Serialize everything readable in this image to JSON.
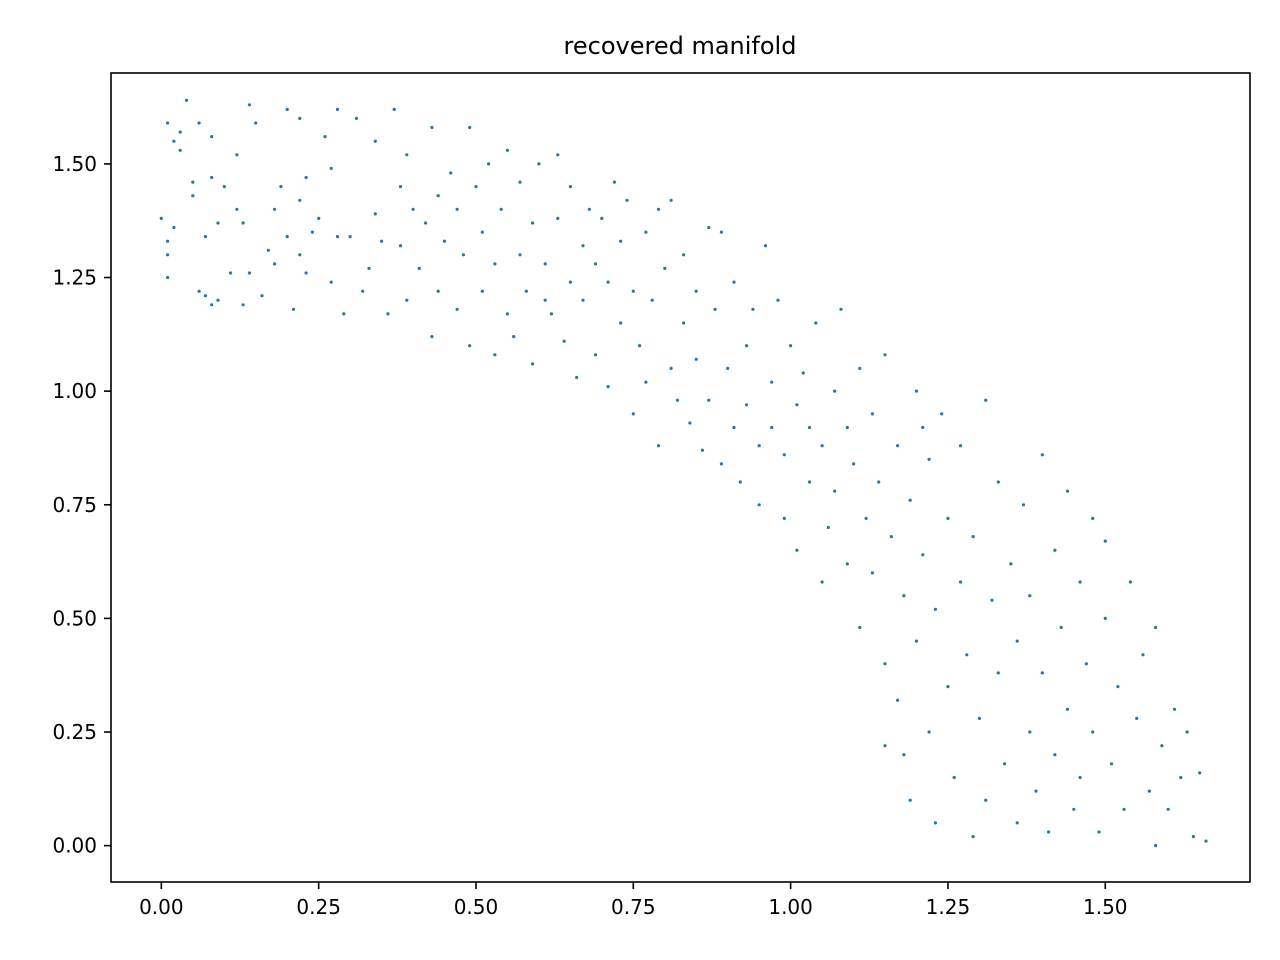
{
  "chart_data": {
    "type": "scatter",
    "title": "recovered manifold",
    "xlabel": "",
    "ylabel": "",
    "xlim": [
      -0.08,
      1.73
    ],
    "ylim": [
      -0.08,
      1.7
    ],
    "x_ticks": [
      {
        "value": 0.0,
        "label": "0.00"
      },
      {
        "value": 0.25,
        "label": "0.25"
      },
      {
        "value": 0.5,
        "label": "0.50"
      },
      {
        "value": 0.75,
        "label": "0.75"
      },
      {
        "value": 1.0,
        "label": "1.00"
      },
      {
        "value": 1.25,
        "label": "1.25"
      },
      {
        "value": 1.5,
        "label": "1.50"
      }
    ],
    "y_ticks": [
      {
        "value": 0.0,
        "label": "0.00"
      },
      {
        "value": 0.25,
        "label": "0.25"
      },
      {
        "value": 0.5,
        "label": "0.50"
      },
      {
        "value": 0.75,
        "label": "0.75"
      },
      {
        "value": 1.0,
        "label": "1.00"
      },
      {
        "value": 1.25,
        "label": "1.25"
      },
      {
        "value": 1.5,
        "label": "1.50"
      }
    ],
    "grid": false,
    "legend": "none",
    "marker_color": "#1f77b4",
    "series": [
      {
        "points": [
          [
            0.0,
            1.38
          ],
          [
            0.01,
            1.59
          ],
          [
            0.02,
            1.55
          ],
          [
            0.03,
            1.57
          ],
          [
            0.01,
            1.33
          ],
          [
            0.02,
            1.36
          ],
          [
            0.01,
            1.3
          ],
          [
            0.01,
            1.25
          ],
          [
            0.03,
            1.53
          ],
          [
            0.04,
            1.64
          ],
          [
            0.05,
            1.43
          ],
          [
            0.05,
            1.46
          ],
          [
            0.06,
            1.59
          ],
          [
            0.07,
            1.34
          ],
          [
            0.06,
            1.22
          ],
          [
            0.08,
            1.19
          ],
          [
            0.07,
            1.21
          ],
          [
            0.09,
            1.2
          ],
          [
            0.08,
            1.47
          ],
          [
            0.08,
            1.56
          ],
          [
            0.09,
            1.37
          ],
          [
            0.1,
            1.45
          ],
          [
            0.11,
            1.26
          ],
          [
            0.12,
            1.52
          ],
          [
            0.12,
            1.4
          ],
          [
            0.13,
            1.37
          ],
          [
            0.14,
            1.26
          ],
          [
            0.15,
            1.59
          ],
          [
            0.14,
            1.63
          ],
          [
            0.13,
            1.19
          ],
          [
            0.16,
            1.21
          ],
          [
            0.17,
            1.31
          ],
          [
            0.18,
            1.28
          ],
          [
            0.18,
            1.4
          ],
          [
            0.19,
            1.45
          ],
          [
            0.2,
            1.34
          ],
          [
            0.2,
            1.62
          ],
          [
            0.21,
            1.18
          ],
          [
            0.22,
            1.42
          ],
          [
            0.22,
            1.3
          ],
          [
            0.22,
            1.6
          ],
          [
            0.23,
            1.47
          ],
          [
            0.23,
            1.26
          ],
          [
            0.24,
            1.35
          ],
          [
            0.25,
            1.38
          ],
          [
            0.26,
            1.56
          ],
          [
            0.27,
            1.49
          ],
          [
            0.27,
            1.24
          ],
          [
            0.28,
            1.34
          ],
          [
            0.29,
            1.17
          ],
          [
            0.28,
            1.62
          ],
          [
            0.3,
            1.34
          ],
          [
            0.31,
            1.6
          ],
          [
            0.32,
            1.22
          ],
          [
            0.33,
            1.27
          ],
          [
            0.34,
            1.39
          ],
          [
            0.34,
            1.55
          ],
          [
            0.35,
            1.33
          ],
          [
            0.36,
            1.17
          ],
          [
            0.37,
            1.62
          ],
          [
            0.38,
            1.32
          ],
          [
            0.38,
            1.45
          ],
          [
            0.39,
            1.2
          ],
          [
            0.39,
            1.52
          ],
          [
            0.4,
            1.4
          ],
          [
            0.41,
            1.27
          ],
          [
            0.42,
            1.37
          ],
          [
            0.43,
            1.12
          ],
          [
            0.43,
            1.58
          ],
          [
            0.44,
            1.43
          ],
          [
            0.44,
            1.22
          ],
          [
            0.45,
            1.33
          ],
          [
            0.46,
            1.48
          ],
          [
            0.47,
            1.18
          ],
          [
            0.47,
            1.4
          ],
          [
            0.48,
            1.3
          ],
          [
            0.49,
            1.1
          ],
          [
            0.49,
            1.58
          ],
          [
            0.5,
            1.45
          ],
          [
            0.51,
            1.35
          ],
          [
            0.51,
            1.22
          ],
          [
            0.52,
            1.5
          ],
          [
            0.53,
            1.08
          ],
          [
            0.53,
            1.28
          ],
          [
            0.54,
            1.4
          ],
          [
            0.55,
            1.53
          ],
          [
            0.55,
            1.17
          ],
          [
            0.56,
            1.12
          ],
          [
            0.57,
            1.3
          ],
          [
            0.57,
            1.46
          ],
          [
            0.58,
            1.22
          ],
          [
            0.59,
            1.37
          ],
          [
            0.59,
            1.06
          ],
          [
            0.6,
            1.5
          ],
          [
            0.61,
            1.2
          ],
          [
            0.61,
            1.28
          ],
          [
            0.62,
            1.17
          ],
          [
            0.63,
            1.38
          ],
          [
            0.63,
            1.52
          ],
          [
            0.64,
            1.11
          ],
          [
            0.65,
            1.45
          ],
          [
            0.65,
            1.24
          ],
          [
            0.66,
            1.03
          ],
          [
            0.67,
            1.32
          ],
          [
            0.67,
            1.2
          ],
          [
            0.68,
            1.4
          ],
          [
            0.69,
            1.08
          ],
          [
            0.69,
            1.28
          ],
          [
            0.7,
            1.38
          ],
          [
            0.71,
            1.01
          ],
          [
            0.71,
            1.24
          ],
          [
            0.72,
            1.46
          ],
          [
            0.73,
            1.15
          ],
          [
            0.73,
            1.33
          ],
          [
            0.74,
            1.42
          ],
          [
            0.75,
            0.95
          ],
          [
            0.75,
            1.22
          ],
          [
            0.76,
            1.1
          ],
          [
            0.77,
            1.35
          ],
          [
            0.77,
            1.02
          ],
          [
            0.78,
            1.2
          ],
          [
            0.79,
            1.4
          ],
          [
            0.79,
            0.88
          ],
          [
            0.8,
            1.27
          ],
          [
            0.81,
            1.05
          ],
          [
            0.81,
            1.42
          ],
          [
            0.82,
            0.98
          ],
          [
            0.83,
            1.15
          ],
          [
            0.83,
            1.3
          ],
          [
            0.84,
            0.93
          ],
          [
            0.85,
            1.22
          ],
          [
            0.85,
            1.07
          ],
          [
            0.86,
            0.87
          ],
          [
            0.87,
            1.36
          ],
          [
            0.87,
            0.98
          ],
          [
            0.88,
            1.18
          ],
          [
            0.89,
            0.84
          ],
          [
            0.89,
            1.35
          ],
          [
            0.9,
            1.05
          ],
          [
            0.91,
            0.92
          ],
          [
            0.91,
            1.24
          ],
          [
            0.92,
            0.8
          ],
          [
            0.93,
            1.1
          ],
          [
            0.93,
            0.97
          ],
          [
            0.94,
            1.18
          ],
          [
            0.95,
            0.88
          ],
          [
            0.95,
            0.75
          ],
          [
            0.96,
            1.32
          ],
          [
            0.97,
            1.02
          ],
          [
            0.97,
            0.92
          ],
          [
            0.98,
            1.2
          ],
          [
            0.99,
            0.86
          ],
          [
            0.99,
            0.72
          ],
          [
            1.0,
            1.1
          ],
          [
            1.01,
            0.97
          ],
          [
            1.01,
            0.65
          ],
          [
            1.02,
            1.04
          ],
          [
            1.03,
            0.8
          ],
          [
            1.03,
            0.92
          ],
          [
            1.04,
            1.15
          ],
          [
            1.05,
            0.58
          ],
          [
            1.05,
            0.88
          ],
          [
            1.06,
            0.7
          ],
          [
            1.07,
            1.0
          ],
          [
            1.07,
            0.78
          ],
          [
            1.08,
            1.18
          ],
          [
            1.09,
            0.62
          ],
          [
            1.09,
            0.92
          ],
          [
            1.1,
            0.84
          ],
          [
            1.11,
            0.48
          ],
          [
            1.11,
            1.05
          ],
          [
            1.12,
            0.72
          ],
          [
            1.13,
            0.6
          ],
          [
            1.13,
            0.95
          ],
          [
            1.14,
            0.8
          ],
          [
            1.15,
            0.4
          ],
          [
            1.15,
            1.08
          ],
          [
            1.16,
            0.68
          ],
          [
            1.17,
            0.32
          ],
          [
            1.17,
            0.88
          ],
          [
            1.18,
            0.55
          ],
          [
            1.18,
            0.2
          ],
          [
            1.19,
            0.1
          ],
          [
            1.19,
            0.76
          ],
          [
            1.2,
            1.0
          ],
          [
            1.2,
            0.45
          ],
          [
            1.21,
            0.64
          ],
          [
            1.22,
            0.25
          ],
          [
            1.22,
            0.85
          ],
          [
            1.23,
            0.05
          ],
          [
            1.23,
            0.52
          ],
          [
            1.24,
            0.95
          ],
          [
            1.25,
            0.35
          ],
          [
            1.25,
            0.72
          ],
          [
            1.26,
            0.15
          ],
          [
            1.27,
            0.58
          ],
          [
            1.27,
            0.88
          ],
          [
            1.28,
            0.42
          ],
          [
            1.29,
            0.02
          ],
          [
            1.29,
            0.68
          ],
          [
            1.3,
            0.28
          ],
          [
            1.31,
            0.98
          ],
          [
            1.31,
            0.1
          ],
          [
            1.32,
            0.54
          ],
          [
            1.33,
            0.8
          ],
          [
            1.33,
            0.38
          ],
          [
            1.34,
            0.18
          ],
          [
            1.35,
            0.62
          ],
          [
            1.36,
            0.05
          ],
          [
            1.36,
            0.45
          ],
          [
            1.37,
            0.75
          ],
          [
            1.38,
            0.25
          ],
          [
            1.38,
            0.55
          ],
          [
            1.39,
            0.12
          ],
          [
            1.4,
            0.86
          ],
          [
            1.4,
            0.38
          ],
          [
            1.41,
            0.03
          ],
          [
            1.42,
            0.65
          ],
          [
            1.42,
            0.2
          ],
          [
            1.43,
            0.48
          ],
          [
            1.44,
            0.78
          ],
          [
            1.44,
            0.3
          ],
          [
            1.45,
            0.08
          ],
          [
            1.46,
            0.58
          ],
          [
            1.46,
            0.15
          ],
          [
            1.47,
            0.4
          ],
          [
            1.48,
            0.72
          ],
          [
            1.48,
            0.25
          ],
          [
            1.49,
            0.03
          ],
          [
            1.5,
            0.5
          ],
          [
            1.5,
            0.67
          ],
          [
            1.51,
            0.18
          ],
          [
            1.52,
            0.35
          ],
          [
            1.53,
            0.08
          ],
          [
            1.54,
            0.58
          ],
          [
            1.55,
            0.28
          ],
          [
            1.56,
            0.42
          ],
          [
            1.57,
            0.12
          ],
          [
            1.58,
            0.0
          ],
          [
            1.58,
            0.48
          ],
          [
            1.59,
            0.22
          ],
          [
            1.6,
            0.08
          ],
          [
            1.61,
            0.3
          ],
          [
            1.62,
            0.15
          ],
          [
            1.63,
            0.25
          ],
          [
            1.64,
            0.02
          ],
          [
            1.65,
            0.16
          ],
          [
            1.66,
            0.01
          ],
          [
            1.15,
            0.22
          ],
          [
            1.21,
            0.92
          ]
        ]
      }
    ]
  }
}
